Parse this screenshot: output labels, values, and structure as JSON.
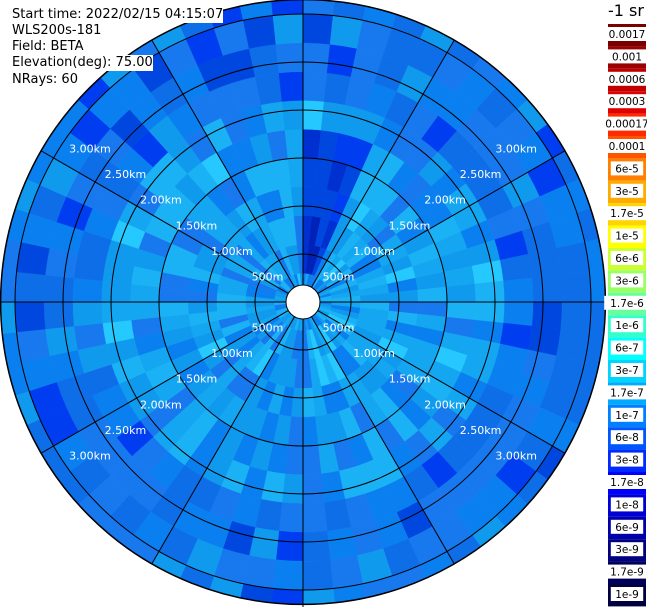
{
  "info": {
    "start_time": "Start time: 2022/02/15 04:15:07",
    "instrument": "WLS200s-181",
    "field": "Field: BETA",
    "elevation": "Elevation(deg): 75.00",
    "nrays": "NRays: 60"
  },
  "colorbar": {
    "unit_label": "-1 sr",
    "labels": [
      "0.0017",
      "0.001",
      "0.0006",
      "0.0003",
      "0.00017",
      "0.0001",
      "6e-5",
      "3e-5",
      "1.7e-5",
      "1e-5",
      "6e-6",
      "3e-6",
      "1.7e-6",
      "1e-6",
      "6e-7",
      "3e-7",
      "1.7e-7",
      "1e-7",
      "6e-8",
      "3e-8",
      "1.7e-8",
      "1e-8",
      "6e-9",
      "3e-9",
      "1.7e-9",
      "1e-9"
    ],
    "colors": [
      "#7a0000",
      "#9c0000",
      "#c00000",
      "#e00000",
      "#ff2a00",
      "#ff5500",
      "#ff8000",
      "#ffaa00",
      "#ffd400",
      "#ffff00",
      "#ccff33",
      "#99ff66",
      "#66ff99",
      "#33ffcc",
      "#00ffff",
      "#00d4ff",
      "#00aaff",
      "#0080ff",
      "#0055ff",
      "#002aff",
      "#0000ff",
      "#0000d4",
      "#0000aa",
      "#000080",
      "#00005a",
      "#000040"
    ]
  },
  "chart_data": {
    "type": "heatmap",
    "projection": "polar PPI",
    "rays": 60,
    "range_rings_km": [
      0.5,
      1.0,
      1.5,
      2.0,
      2.5,
      3.0
    ],
    "ring_labels": [
      "500m",
      "1.00km",
      "1.50km",
      "2.00km",
      "2.50km",
      "3.00km"
    ],
    "spokes_deg": [
      0,
      30,
      60,
      90,
      120,
      150,
      180,
      210,
      240,
      270,
      300,
      330
    ],
    "field": "BETA",
    "range_bins_km": [
      0.15,
      0.45,
      0.75,
      1.05,
      1.35,
      1.65,
      1.95,
      2.25,
      2.55,
      2.85,
      3.15
    ],
    "beta_pattern": {
      "inner_plateau": "~1e-7 (light blue) from 0.5 to 2.0 km",
      "outer_background": "~3e-8 to 6e-8 (blue) beyond 2.0 km",
      "strong_sector": "~6e-9 to 1e-8 (dark blue) at azimuth 0-20 deg, 0.3-1.9 km"
    }
  }
}
